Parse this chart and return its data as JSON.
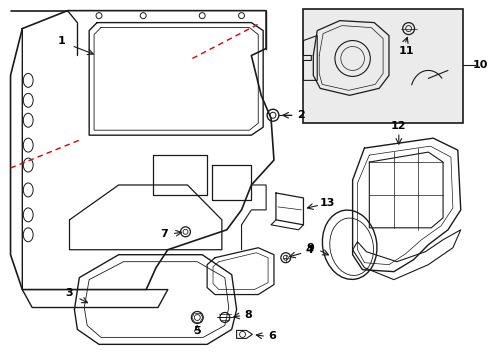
{
  "bg_color": "#ffffff",
  "line_color": "#1a1a1a",
  "red_color": "#dd0000",
  "box_bg": "#ebebeb",
  "figsize": [
    4.89,
    3.6
  ],
  "dpi": 100
}
